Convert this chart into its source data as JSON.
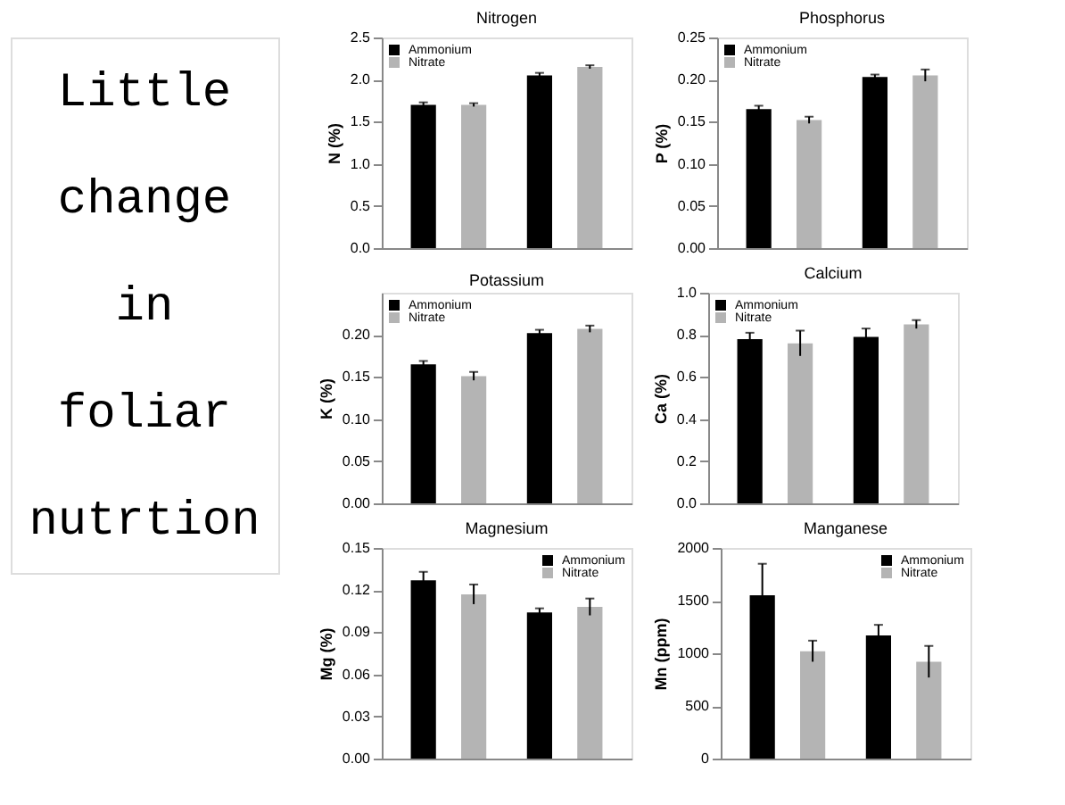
{
  "chart_data": [
    {
      "type": "other",
      "title": "Little change in foliar nutrtion"
    },
    {
      "type": "bar",
      "title": "Nitrogen",
      "ylabel": "N (%)",
      "categories": [
        null,
        null
      ],
      "ylim": [
        0,
        2.5
      ],
      "yticks": [
        {
          "value": 0,
          "label": "0.0"
        },
        0.5,
        {
          "value": 1,
          "label": "1.0"
        },
        1.5,
        {
          "value": 2,
          "label": "2.0"
        },
        2.5
      ],
      "grid": false,
      "legend": "top left",
      "tick_labels": "y",
      "series": [
        {
          "name": "Ammonium",
          "color": "#000000",
          "values": [
            1.7,
            2.05
          ],
          "errors": [
            0.03,
            0.03
          ]
        },
        {
          "name": "Nitrate",
          "color": "#b4b4b4",
          "values": [
            1.7,
            2.15
          ],
          "errors": [
            0.02,
            0.02
          ]
        }
      ]
    },
    {
      "type": "bar",
      "title": "Phosphorus",
      "ylabel": "P (%)",
      "categories": [
        null,
        null
      ],
      "ylim": [
        0,
        0.25
      ],
      "yticks": [
        {
          "value": 0,
          "label": "0.00"
        },
        0.05,
        {
          "value": 0.1,
          "label": "0.10"
        },
        0.15,
        {
          "value": 0.2,
          "label": "0.20"
        },
        0.25
      ],
      "grid": false,
      "legend": "top left",
      "tick_labels": "y",
      "series": [
        {
          "name": "Ammonium",
          "color": "#000000",
          "values": [
            0.165,
            0.203
          ],
          "errors": [
            0.004,
            0.003
          ]
        },
        {
          "name": "Nitrate",
          "color": "#b4b4b4",
          "values": [
            0.152,
            0.205
          ],
          "errors": [
            0.004,
            0.007
          ]
        }
      ]
    },
    {
      "type": "bar",
      "title": "Potassium",
      "ylabel": "K (%)",
      "categories": [
        null,
        null
      ],
      "ylim": [
        0,
        0.25
      ],
      "yticks": [
        {
          "value": 0,
          "label": "0.00"
        },
        0.05,
        {
          "value": 0.1,
          "label": "0.10"
        },
        0.15,
        {
          "value": 0.2,
          "label": "0.20"
        }
      ],
      "grid": false,
      "legend": "top left",
      "tick_labels": "y",
      "series": [
        {
          "name": "Ammonium",
          "color": "#000000",
          "values": [
            0.165,
            0.202
          ],
          "errors": [
            0.004,
            0.004
          ]
        },
        {
          "name": "Nitrate",
          "color": "#b4b4b4",
          "values": [
            0.151,
            0.207
          ],
          "errors": [
            0.005,
            0.004
          ]
        }
      ]
    },
    {
      "type": "bar",
      "title": "Calcium",
      "ylabel": "Ca (%)",
      "categories": [
        null,
        null
      ],
      "ylim": [
        0,
        1.0
      ],
      "yticks": [
        {
          "value": 0,
          "label": "0.0"
        },
        0.2,
        0.4,
        0.6,
        0.8,
        {
          "value": 1,
          "label": "1.0"
        }
      ],
      "grid": false,
      "legend": "top left",
      "tick_labels": "y",
      "series": [
        {
          "name": "Ammonium",
          "color": "#000000",
          "values": [
            0.78,
            0.79
          ],
          "errors": [
            0.03,
            0.04
          ]
        },
        {
          "name": "Nitrate",
          "color": "#b4b4b4",
          "values": [
            0.76,
            0.85
          ],
          "errors": [
            0.06,
            0.02
          ]
        }
      ]
    },
    {
      "type": "bar",
      "title": "Magnesium",
      "ylabel": "Mg (%)",
      "categories": [
        null,
        null
      ],
      "ylim": [
        0,
        0.15
      ],
      "yticks": [
        {
          "value": 0,
          "label": "0.00"
        },
        0.03,
        0.06,
        0.09,
        0.12,
        0.15
      ],
      "grid": false,
      "legend": "top right",
      "tick_labels": "y",
      "series": [
        {
          "name": "Ammonium",
          "color": "#000000",
          "values": [
            0.127,
            0.104
          ],
          "errors": [
            0.006,
            0.003
          ]
        },
        {
          "name": "Nitrate",
          "color": "#b4b4b4",
          "values": [
            0.117,
            0.108
          ],
          "errors": [
            0.007,
            0.006
          ]
        }
      ]
    },
    {
      "type": "bar",
      "title": "Manganese",
      "ylabel": "Mn (ppm)",
      "categories": [
        null,
        null
      ],
      "ylim": [
        0,
        2000
      ],
      "yticks": [
        0,
        500,
        1000,
        1500,
        2000
      ],
      "grid": false,
      "legend": "top right",
      "tick_labels": "y",
      "series": [
        {
          "name": "Ammonium",
          "color": "#000000",
          "values": [
            1550,
            1170
          ],
          "errors": [
            300,
            100
          ]
        },
        {
          "name": "Nitrate",
          "color": "#b4b4b4",
          "values": [
            1020,
            920
          ],
          "errors": [
            100,
            150
          ]
        }
      ]
    }
  ]
}
